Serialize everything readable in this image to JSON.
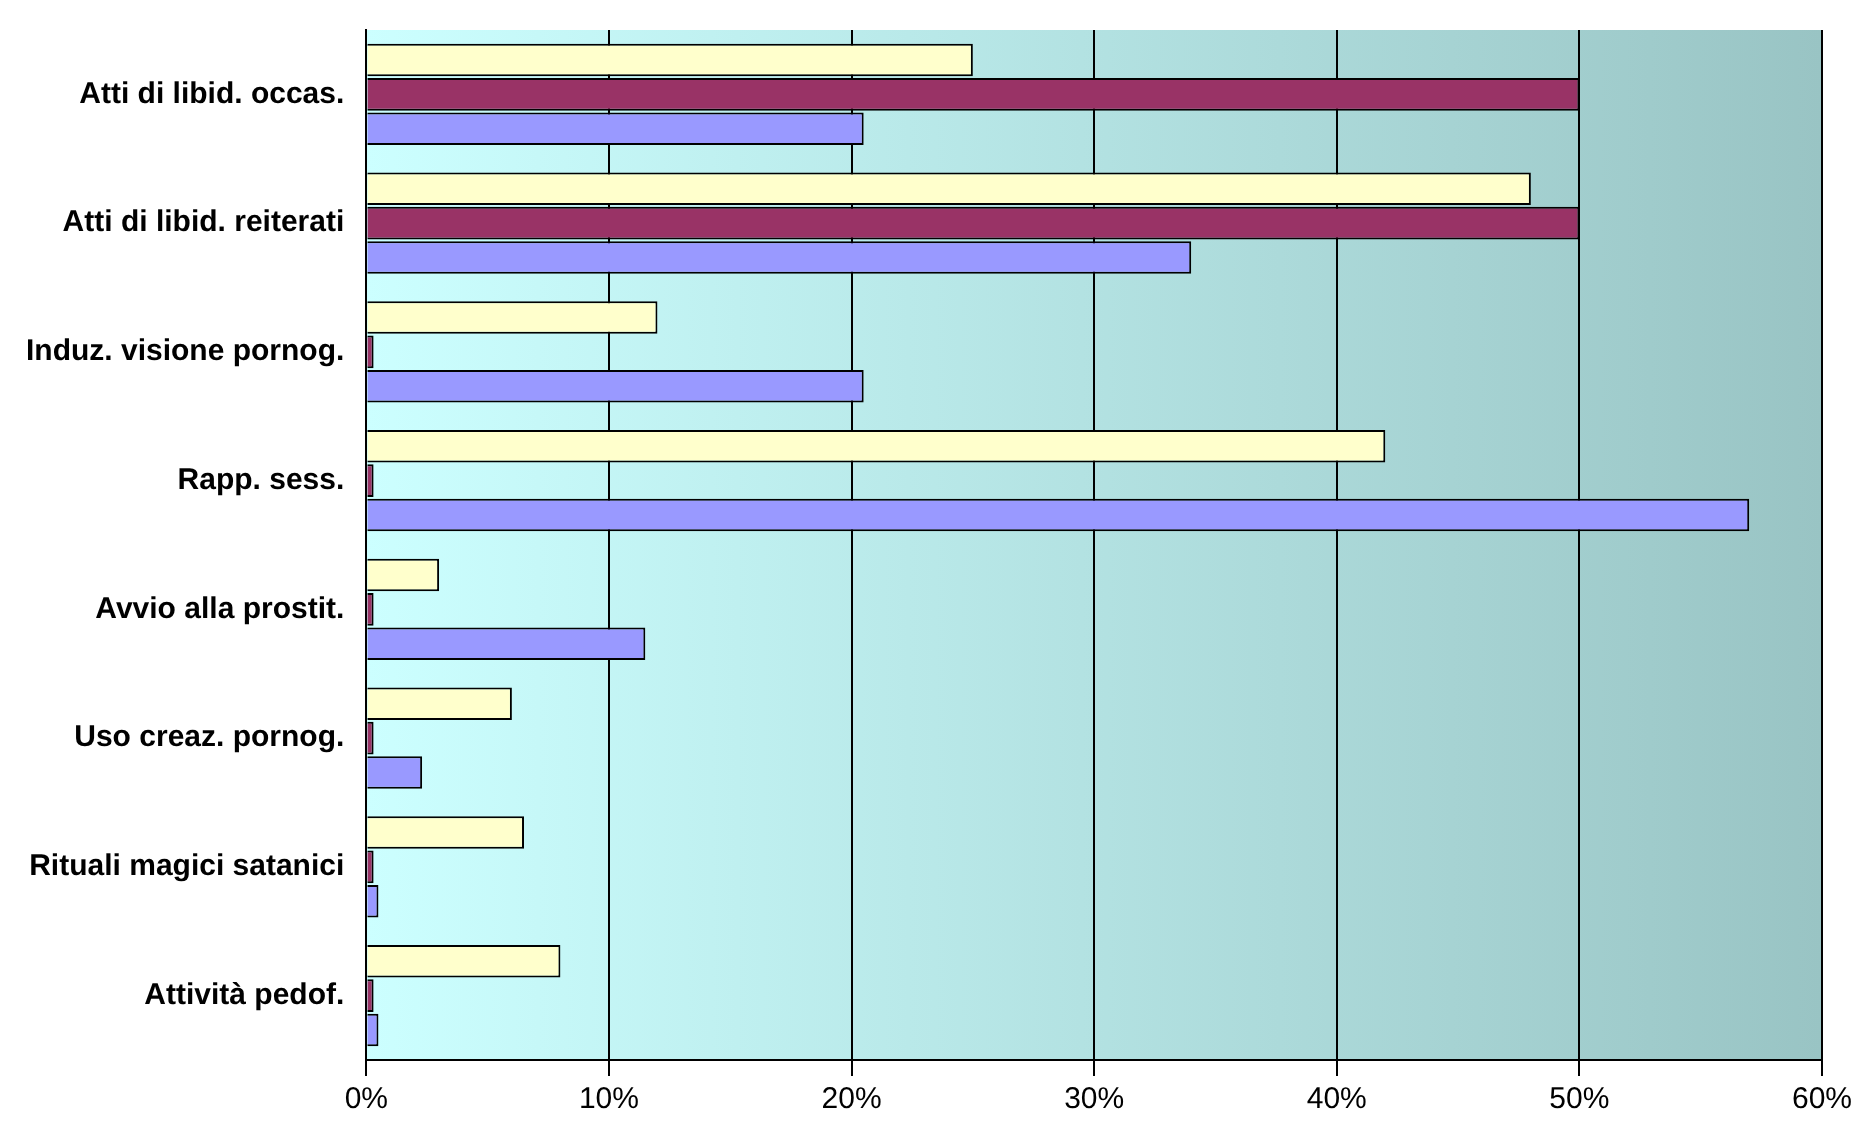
{
  "chart_data": {
    "type": "bar",
    "orientation": "horizontal",
    "categories": [
      "Atti di libid. occas.",
      "Atti di libid. reiterati",
      "Induz. visione pornog.",
      "Rapp. sess.",
      "Avvio alla prostit.",
      "Uso creaz. pornog.",
      "Rituali magici satanici",
      "Attività pedof."
    ],
    "series": [
      {
        "color": "#ffffcc",
        "values": [
          25,
          48,
          12,
          42,
          3,
          6,
          6.5,
          8
        ]
      },
      {
        "color": "#993366",
        "values": [
          50,
          50,
          0.3,
          0.3,
          0.3,
          0.3,
          0.3,
          0.3
        ]
      },
      {
        "color": "#9999ff",
        "values": [
          20.5,
          34,
          20.5,
          57,
          11.5,
          2.3,
          0.5,
          0.5
        ]
      }
    ],
    "xlim": [
      0,
      60
    ],
    "xticks": [
      {
        "value": 0,
        "label": "0%"
      },
      {
        "value": 10,
        "label": "10%"
      },
      {
        "value": 20,
        "label": "20%"
      },
      {
        "value": 30,
        "label": "30%"
      },
      {
        "value": 40,
        "label": "40%"
      },
      {
        "value": 50,
        "label": "50%"
      },
      {
        "value": 60,
        "label": "60%"
      }
    ],
    "grid": "x",
    "legend": false
  }
}
